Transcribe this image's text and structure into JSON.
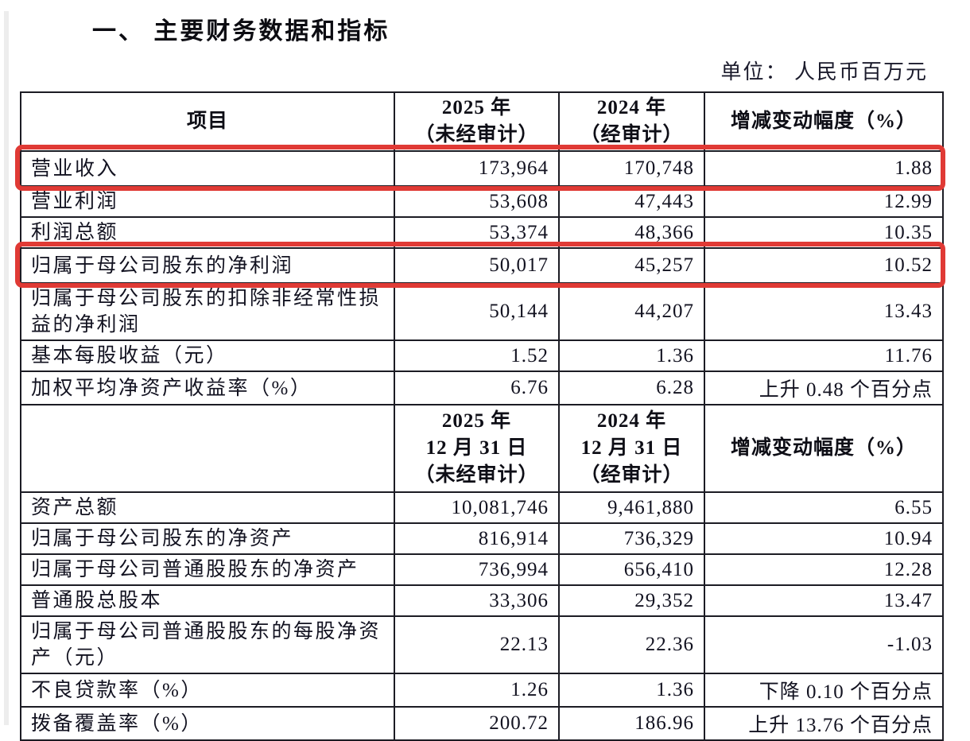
{
  "title": "一、 主要财务数据和指标",
  "unit_note": "单位： 人民币百万元",
  "colors": {
    "highlight_box": "#e03a35",
    "border": "#1c1c24"
  },
  "table": {
    "section1": {
      "header": {
        "item": "项目",
        "col2025": [
          "2025 年",
          "（未经审计）"
        ],
        "col2024": [
          "2024 年",
          "（经审计）"
        ],
        "change": "增减变动幅度（%）"
      },
      "rows": [
        {
          "label": "营业收入",
          "v2025": "173,964",
          "v2024": "170,748",
          "change": "1.88",
          "highlight": true
        },
        {
          "label": "营业利润",
          "v2025": "53,608",
          "v2024": "47,443",
          "change": "12.99",
          "highlight": false
        },
        {
          "label": "利润总额",
          "v2025": "53,374",
          "v2024": "48,366",
          "change": "10.35",
          "highlight": false
        },
        {
          "label": "归属于母公司股东的净利润",
          "v2025": "50,017",
          "v2024": "45,257",
          "change": "10.52",
          "highlight": true
        },
        {
          "label": "归属于母公司股东的扣除非经常性损益的净利润",
          "v2025": "50,144",
          "v2024": "44,207",
          "change": "13.43",
          "highlight": false
        },
        {
          "label": "基本每股收益（元）",
          "v2025": "1.52",
          "v2024": "1.36",
          "change": "11.76",
          "highlight": false
        },
        {
          "label": "加权平均净资产收益率（%）",
          "v2025": "6.76",
          "v2024": "6.28",
          "change": "上升 0.48 个百分点",
          "highlight": false
        }
      ]
    },
    "section2": {
      "header": {
        "item": "",
        "col2025": [
          "2025 年",
          "12 月 31 日",
          "（未经审计）"
        ],
        "col2024": [
          "2024 年",
          "12 月 31 日",
          "（经审计）"
        ],
        "change": "增减变动幅度（%）"
      },
      "rows": [
        {
          "label": "资产总额",
          "v2025": "10,081,746",
          "v2024": "9,461,880",
          "change": "6.55",
          "highlight": false
        },
        {
          "label": "归属于母公司股东的净资产",
          "v2025": "816,914",
          "v2024": "736,329",
          "change": "10.94",
          "highlight": false
        },
        {
          "label": "归属于母公司普通股股东的净资产",
          "v2025": "736,994",
          "v2024": "656,410",
          "change": "12.28",
          "highlight": false
        },
        {
          "label": "普通股总股本",
          "v2025": "33,306",
          "v2024": "29,352",
          "change": "13.47",
          "highlight": false
        },
        {
          "label": "归属于母公司普通股股东的每股净资产（元）",
          "v2025": "22.13",
          "v2024": "22.36",
          "change": "-1.03",
          "highlight": false
        },
        {
          "label": "不良贷款率（%）",
          "v2025": "1.26",
          "v2024": "1.36",
          "change": "下降 0.10 个百分点",
          "highlight": false
        },
        {
          "label": "拨备覆盖率（%）",
          "v2025": "200.72",
          "v2024": "186.96",
          "change": "上升 13.76 个百分点",
          "highlight": false
        }
      ]
    }
  }
}
